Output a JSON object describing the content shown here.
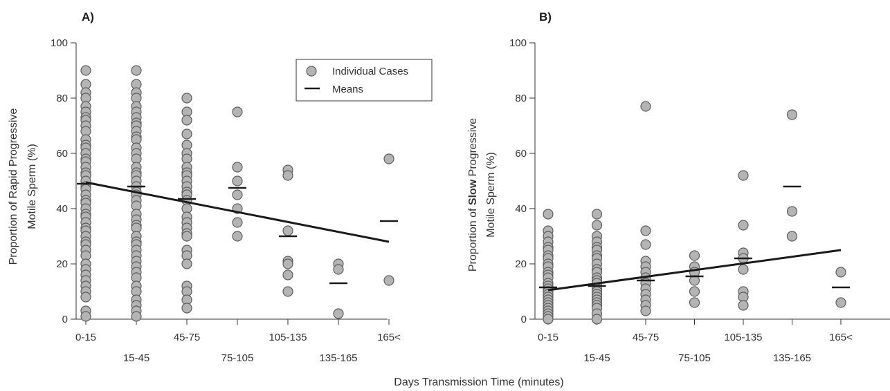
{
  "figure": {
    "xlabel": "Days Transmission Time (minutes)"
  },
  "colors": {
    "point_fill": "#b4b4b4",
    "point_stroke": "#5e5e5e",
    "line": "#1a1a1a",
    "axis": "#333333"
  },
  "chart_data": [
    {
      "panel_label": "A)",
      "type": "scatter",
      "ylabel_lines": [
        "Proportion of Rapid Progressive",
        "Motile Sperm (%)"
      ],
      "ylabel_bold_word": "",
      "categories": [
        "0-15",
        "15-45",
        "45-75",
        "75-105",
        "105-135",
        "135-165",
        "165<"
      ],
      "ylim": [
        0,
        100
      ],
      "yticks": [
        0,
        20,
        40,
        60,
        80,
        100
      ],
      "legend": {
        "position": "top-right",
        "points_label": "Individual Cases",
        "means_label": "Means"
      },
      "individual_cases": [
        [
          90,
          85,
          82,
          80,
          77,
          75,
          73,
          72,
          70,
          68,
          65,
          63,
          62,
          60,
          58,
          57,
          55,
          53,
          52,
          50,
          48,
          47,
          45,
          43,
          42,
          40,
          38,
          37,
          35,
          33,
          32,
          30,
          28,
          27,
          25,
          23,
          20,
          18,
          16,
          14,
          12,
          10,
          8,
          3,
          1
        ],
        [
          90,
          85,
          82,
          80,
          77,
          75,
          73,
          71,
          70,
          68,
          66,
          65,
          62,
          60,
          58,
          55,
          53,
          52,
          50,
          48,
          46,
          45,
          43,
          41,
          38,
          36,
          34,
          33,
          30,
          28,
          27,
          25,
          23,
          21,
          19,
          17,
          15,
          12,
          10,
          7,
          5,
          3,
          1
        ],
        [
          80,
          75,
          72,
          67,
          63,
          60,
          58,
          55,
          53,
          52,
          50,
          48,
          46,
          45,
          43,
          40,
          37,
          35,
          33,
          31,
          30,
          25,
          23,
          20,
          12,
          10,
          7,
          4
        ],
        [
          75,
          55,
          50,
          45,
          40,
          35,
          30
        ],
        [
          54,
          52,
          32,
          21,
          20,
          16,
          10
        ],
        [
          20,
          18,
          2
        ],
        [
          58,
          14
        ]
      ],
      "means": [
        49,
        48,
        43.5,
        47.5,
        30,
        13,
        35.5
      ],
      "trend_line": {
        "start": 49.5,
        "end": 28
      }
    },
    {
      "panel_label": "B)",
      "type": "scatter",
      "ylabel_lines": [
        "Proportion of Slow Progressive",
        "Motile Sperm (%)"
      ],
      "ylabel_bold_word": "Slow",
      "categories": [
        "0-15",
        "15-45",
        "45-75",
        "75-105",
        "105-135",
        "135-165",
        "165<"
      ],
      "ylim": [
        0,
        100
      ],
      "yticks": [
        0,
        20,
        40,
        60,
        80,
        100
      ],
      "individual_cases": [
        [
          38,
          32,
          30,
          28,
          26,
          25,
          23,
          22,
          20,
          19,
          17,
          16,
          15,
          13,
          12,
          11,
          10,
          9,
          8,
          7,
          6,
          5,
          4,
          3,
          2,
          1,
          0
        ],
        [
          38,
          34,
          30,
          28,
          26,
          25,
          23,
          22,
          20,
          18,
          17,
          15,
          14,
          13,
          11,
          10,
          9,
          8,
          7,
          6,
          5,
          4,
          2,
          0
        ],
        [
          77,
          32,
          27,
          21,
          19,
          17,
          15,
          13,
          11,
          9,
          7,
          5,
          3
        ],
        [
          23,
          19,
          17,
          14,
          10,
          6
        ],
        [
          52,
          34,
          24,
          22,
          18,
          10,
          8,
          5
        ],
        [
          74,
          39,
          30
        ],
        [
          17,
          6
        ]
      ],
      "means": [
        11.5,
        12,
        14,
        15.5,
        22,
        48,
        11.5
      ],
      "trend_line": {
        "start": 10.5,
        "end": 25
      }
    }
  ]
}
